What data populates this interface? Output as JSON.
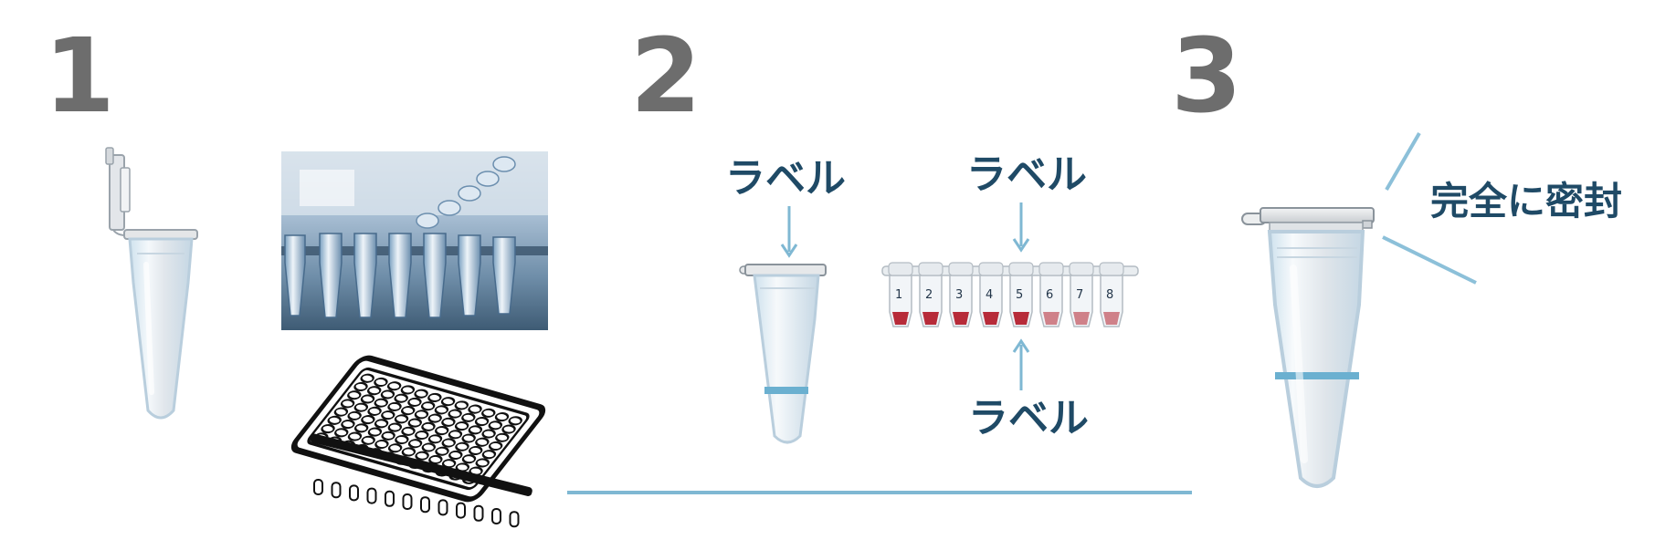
{
  "steps": [
    {
      "number": "1"
    },
    {
      "number": "2"
    },
    {
      "number": "3"
    }
  ],
  "labels": {
    "single_tube": "ラベル",
    "strip_top": "ラベル",
    "strip_bottom": "ラベル",
    "seal": "完全に密封"
  },
  "strip_tube_numbers": [
    "1",
    "2",
    "3",
    "4",
    "5",
    "6",
    "7",
    "8"
  ],
  "colors": {
    "step_number": "#6d6d6d",
    "label_text": "#1f4a66",
    "accent_line": "#7fb8d3",
    "label_band": "#6bb0d0",
    "sample_red": "#b3202e"
  },
  "icons": {
    "open_tube": "open-microcentrifuge-tube",
    "strip_photo": "pcr-strip-tubes-photo",
    "plate": "96-well-plate",
    "labeled_tube": "labeled-microcentrifuge-tube",
    "labeled_strip": "numbered-8-strip-tubes",
    "sealed_tube": "sealed-microcentrifuge-tube"
  }
}
